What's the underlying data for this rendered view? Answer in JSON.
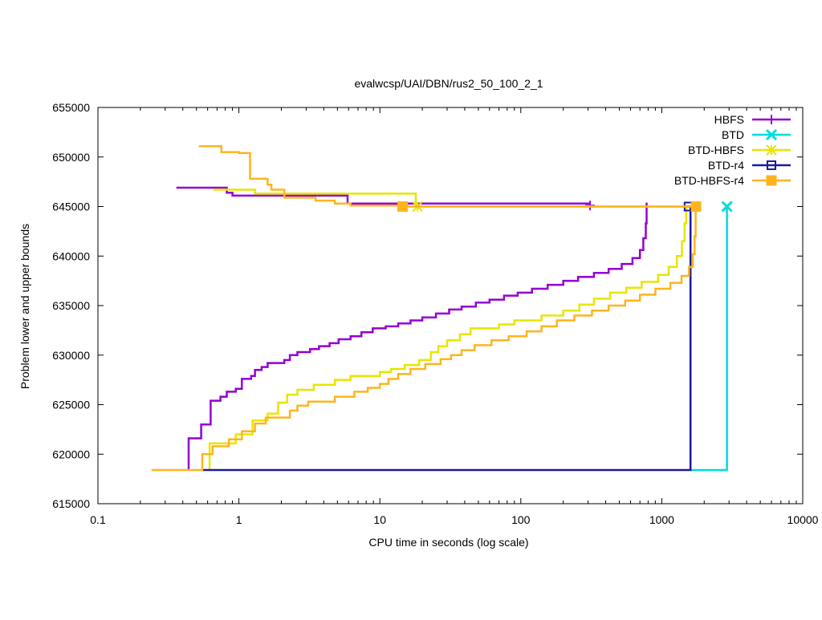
{
  "chart_data": {
    "type": "line",
    "title": "evalwcsp/UAI/DBN/rus2_50_100_2_1",
    "xlabel": "CPU time in seconds (log scale)",
    "ylabel": "Problem lower and upper bounds",
    "x_scale": "log",
    "xlim": [
      0.1,
      10000
    ],
    "ylim": [
      615000,
      655000
    ],
    "x_ticks": [
      0.1,
      1,
      10,
      100,
      1000,
      10000
    ],
    "x_tick_labels": [
      "0.1",
      "1",
      "10",
      "100",
      "1000",
      "10000"
    ],
    "y_ticks": [
      615000,
      620000,
      625000,
      630000,
      635000,
      640000,
      645000,
      650000,
      655000
    ],
    "y_tick_labels": [
      "615000",
      "620000",
      "625000",
      "630000",
      "635000",
      "640000",
      "645000",
      "650000",
      "655000"
    ],
    "grid": false,
    "legend_position": "top-right",
    "series": [
      {
        "name": "HBFS",
        "color": "#9400d3",
        "marker": "plus",
        "lower": [
          [
            0.44,
            618400
          ],
          [
            0.44,
            621600
          ],
          [
            0.54,
            621600
          ],
          [
            0.54,
            623000
          ],
          [
            0.63,
            623000
          ],
          [
            0.63,
            625400
          ],
          [
            0.74,
            625400
          ],
          [
            0.74,
            625800
          ],
          [
            0.82,
            625800
          ],
          [
            0.82,
            626300
          ],
          [
            0.95,
            626300
          ],
          [
            0.95,
            626600
          ],
          [
            1.05,
            626600
          ],
          [
            1.05,
            627600
          ],
          [
            1.22,
            627600
          ],
          [
            1.22,
            627900
          ],
          [
            1.3,
            627900
          ],
          [
            1.3,
            628500
          ],
          [
            1.45,
            628500
          ],
          [
            1.45,
            628800
          ],
          [
            1.6,
            628800
          ],
          [
            1.6,
            629200
          ],
          [
            2.1,
            629200
          ],
          [
            2.1,
            629500
          ],
          [
            2.3,
            629500
          ],
          [
            2.3,
            630000
          ],
          [
            2.6,
            630000
          ],
          [
            2.6,
            630300
          ],
          [
            3.2,
            630300
          ],
          [
            3.2,
            630600
          ],
          [
            3.7,
            630600
          ],
          [
            3.7,
            630900
          ],
          [
            4.4,
            630900
          ],
          [
            4.4,
            631200
          ],
          [
            5.1,
            631200
          ],
          [
            5.1,
            631600
          ],
          [
            6.2,
            631600
          ],
          [
            6.2,
            631900
          ],
          [
            7.4,
            631900
          ],
          [
            7.4,
            632300
          ],
          [
            8.9,
            632300
          ],
          [
            8.9,
            632700
          ],
          [
            11,
            632700
          ],
          [
            11,
            632900
          ],
          [
            13.5,
            632900
          ],
          [
            13.5,
            633200
          ],
          [
            16.5,
            633200
          ],
          [
            16.5,
            633500
          ],
          [
            20,
            633500
          ],
          [
            20,
            633800
          ],
          [
            25,
            633800
          ],
          [
            25,
            634200
          ],
          [
            31,
            634200
          ],
          [
            31,
            634600
          ],
          [
            38,
            634600
          ],
          [
            38,
            634900
          ],
          [
            48,
            634900
          ],
          [
            48,
            635300
          ],
          [
            60,
            635300
          ],
          [
            60,
            635600
          ],
          [
            76,
            635600
          ],
          [
            76,
            636000
          ],
          [
            95,
            636000
          ],
          [
            95,
            636300
          ],
          [
            120,
            636300
          ],
          [
            120,
            636700
          ],
          [
            155,
            636700
          ],
          [
            155,
            637100
          ],
          [
            200,
            637100
          ],
          [
            200,
            637500
          ],
          [
            255,
            637500
          ],
          [
            255,
            637900
          ],
          [
            330,
            637900
          ],
          [
            330,
            638300
          ],
          [
            420,
            638300
          ],
          [
            420,
            638700
          ],
          [
            520,
            638700
          ],
          [
            520,
            639200
          ],
          [
            620,
            639200
          ],
          [
            620,
            639800
          ],
          [
            700,
            639800
          ],
          [
            700,
            640600
          ],
          [
            740,
            640600
          ],
          [
            740,
            641800
          ],
          [
            770,
            641800
          ],
          [
            770,
            643300
          ],
          [
            780,
            643300
          ],
          [
            780,
            645400
          ]
        ],
        "upper": [
          [
            0.36,
            646900
          ],
          [
            0.82,
            646900
          ],
          [
            0.82,
            646400
          ],
          [
            0.9,
            646400
          ],
          [
            0.9,
            646100
          ],
          [
            5.9,
            646100
          ],
          [
            5.9,
            645300
          ],
          [
            310,
            645300
          ]
        ],
        "upper_end_marker": [
          310,
          645100
        ]
      },
      {
        "name": "BTD",
        "color": "#00dcdc",
        "marker": "cross",
        "lower": [
          [
            1600,
            618400
          ],
          [
            2900,
            618400
          ],
          [
            2900,
            645000
          ]
        ],
        "upper": [],
        "end_marker": [
          2900,
          645000
        ]
      },
      {
        "name": "BTD-HBFS",
        "color": "#e6e600",
        "marker": "star",
        "lower": [
          [
            0.62,
            618400
          ],
          [
            0.62,
            621100
          ],
          [
            0.95,
            621100
          ],
          [
            0.95,
            622000
          ],
          [
            1.25,
            622000
          ],
          [
            1.25,
            623400
          ],
          [
            1.6,
            623400
          ],
          [
            1.6,
            624100
          ],
          [
            1.9,
            624100
          ],
          [
            1.9,
            625200
          ],
          [
            2.2,
            625200
          ],
          [
            2.2,
            626000
          ],
          [
            2.6,
            626000
          ],
          [
            2.6,
            626500
          ],
          [
            3.4,
            626500
          ],
          [
            3.4,
            627000
          ],
          [
            4.8,
            627000
          ],
          [
            4.8,
            627500
          ],
          [
            6.2,
            627500
          ],
          [
            6.2,
            627900
          ],
          [
            10,
            627900
          ],
          [
            10,
            628300
          ],
          [
            12,
            628300
          ],
          [
            12,
            628600
          ],
          [
            15,
            628600
          ],
          [
            15,
            629000
          ],
          [
            19,
            629000
          ],
          [
            19,
            629500
          ],
          [
            23,
            629500
          ],
          [
            23,
            630300
          ],
          [
            26,
            630300
          ],
          [
            26,
            630900
          ],
          [
            30,
            630900
          ],
          [
            30,
            631500
          ],
          [
            37,
            631500
          ],
          [
            37,
            632100
          ],
          [
            44,
            632100
          ],
          [
            44,
            632700
          ],
          [
            70,
            632700
          ],
          [
            70,
            633100
          ],
          [
            90,
            633100
          ],
          [
            90,
            633500
          ],
          [
            140,
            633500
          ],
          [
            140,
            634000
          ],
          [
            200,
            634000
          ],
          [
            200,
            634500
          ],
          [
            260,
            634500
          ],
          [
            260,
            635100
          ],
          [
            330,
            635100
          ],
          [
            330,
            635700
          ],
          [
            430,
            635700
          ],
          [
            430,
            636300
          ],
          [
            560,
            636300
          ],
          [
            560,
            636800
          ],
          [
            720,
            636800
          ],
          [
            720,
            637400
          ],
          [
            940,
            637400
          ],
          [
            940,
            638100
          ],
          [
            1120,
            638100
          ],
          [
            1120,
            638900
          ],
          [
            1280,
            638900
          ],
          [
            1280,
            640000
          ],
          [
            1390,
            640000
          ],
          [
            1390,
            641500
          ],
          [
            1450,
            641500
          ],
          [
            1450,
            643300
          ],
          [
            1490,
            643300
          ],
          [
            1490,
            645100
          ]
        ],
        "upper": [
          [
            0.66,
            646700
          ],
          [
            1.3,
            646700
          ],
          [
            1.3,
            646300
          ],
          [
            18,
            646300
          ],
          [
            18,
            645000
          ],
          [
            1500,
            645000
          ]
        ],
        "upper_end_marker": [
          18.5,
          645000
        ]
      },
      {
        "name": "BTD-r4",
        "color": "#1a1aa0",
        "marker": "square",
        "lower": [
          [
            0.55,
            618400
          ],
          [
            1600,
            618400
          ],
          [
            1600,
            645000
          ]
        ],
        "upper": [
          [
            1500,
            645000
          ],
          [
            1600,
            645000
          ]
        ],
        "end_marker": [
          1550,
          645000
        ]
      },
      {
        "name": "BTD-HBFS-r4",
        "color": "#ffb41e",
        "marker": "filled-square",
        "lower": [
          [
            0.24,
            618400
          ],
          [
            0.55,
            618400
          ],
          [
            0.55,
            620000
          ],
          [
            0.65,
            620000
          ],
          [
            0.65,
            620800
          ],
          [
            0.85,
            620800
          ],
          [
            0.85,
            621500
          ],
          [
            1.05,
            621500
          ],
          [
            1.05,
            622300
          ],
          [
            1.3,
            622300
          ],
          [
            1.3,
            623100
          ],
          [
            1.55,
            623100
          ],
          [
            1.55,
            623700
          ],
          [
            2.3,
            623700
          ],
          [
            2.3,
            624400
          ],
          [
            2.6,
            624400
          ],
          [
            2.6,
            624900
          ],
          [
            3.1,
            624900
          ],
          [
            3.1,
            625300
          ],
          [
            4.8,
            625300
          ],
          [
            4.8,
            625800
          ],
          [
            6.6,
            625800
          ],
          [
            6.6,
            626300
          ],
          [
            8.2,
            626300
          ],
          [
            8.2,
            626700
          ],
          [
            10,
            626700
          ],
          [
            10,
            627100
          ],
          [
            11.5,
            627100
          ],
          [
            11.5,
            627600
          ],
          [
            13.5,
            627600
          ],
          [
            13.5,
            628100
          ],
          [
            16.5,
            628100
          ],
          [
            16.5,
            628600
          ],
          [
            21,
            628600
          ],
          [
            21,
            629100
          ],
          [
            27,
            629100
          ],
          [
            27,
            629600
          ],
          [
            32,
            629600
          ],
          [
            32,
            630000
          ],
          [
            38,
            630000
          ],
          [
            38,
            630500
          ],
          [
            47,
            630500
          ],
          [
            47,
            631000
          ],
          [
            62,
            631000
          ],
          [
            62,
            631500
          ],
          [
            82,
            631500
          ],
          [
            82,
            631900
          ],
          [
            110,
            631900
          ],
          [
            110,
            632400
          ],
          [
            140,
            632400
          ],
          [
            140,
            632900
          ],
          [
            180,
            632900
          ],
          [
            180,
            633500
          ],
          [
            240,
            633500
          ],
          [
            240,
            634000
          ],
          [
            320,
            634000
          ],
          [
            320,
            634500
          ],
          [
            420,
            634500
          ],
          [
            420,
            635000
          ],
          [
            550,
            635000
          ],
          [
            550,
            635500
          ],
          [
            700,
            635500
          ],
          [
            700,
            636100
          ],
          [
            900,
            636100
          ],
          [
            900,
            636700
          ],
          [
            1150,
            636700
          ],
          [
            1150,
            637300
          ],
          [
            1380,
            637300
          ],
          [
            1380,
            638000
          ],
          [
            1560,
            638000
          ],
          [
            1560,
            638900
          ],
          [
            1660,
            638900
          ],
          [
            1660,
            640200
          ],
          [
            1710,
            640200
          ],
          [
            1710,
            642000
          ],
          [
            1740,
            642000
          ],
          [
            1740,
            645000
          ]
        ],
        "upper": [
          [
            0.52,
            651100
          ],
          [
            0.75,
            651100
          ],
          [
            0.75,
            650500
          ],
          [
            1.0,
            650500
          ],
          [
            1.0,
            650400
          ],
          [
            1.2,
            650400
          ],
          [
            1.2,
            647800
          ],
          [
            1.6,
            647800
          ],
          [
            1.6,
            647200
          ],
          [
            1.7,
            647200
          ],
          [
            1.7,
            646700
          ],
          [
            2.1,
            646700
          ],
          [
            2.1,
            645900
          ],
          [
            3.5,
            645900
          ],
          [
            3.5,
            645600
          ],
          [
            4.8,
            645600
          ],
          [
            4.8,
            645300
          ],
          [
            6.2,
            645300
          ],
          [
            6.2,
            645100
          ],
          [
            14.5,
            645100
          ],
          [
            14.5,
            645000
          ],
          [
            1750,
            645000
          ]
        ],
        "upper_end_marker": [
          14.5,
          645000
        ],
        "end_marker": [
          1750,
          645000
        ]
      }
    ]
  }
}
